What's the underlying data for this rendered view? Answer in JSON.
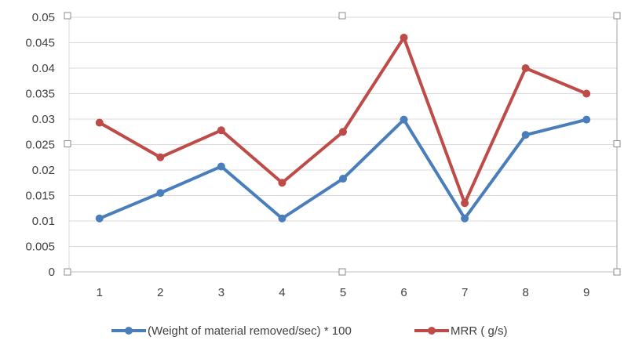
{
  "chart_data": {
    "type": "line",
    "categories": [
      "1",
      "2",
      "3",
      "4",
      "5",
      "6",
      "7",
      "8",
      "9"
    ],
    "series": [
      {
        "name": "(Weight of material removed/sec) * 100",
        "color": "#4a7ebb",
        "values": [
          0.0105,
          0.0155,
          0.0207,
          0.0105,
          0.0183,
          0.0299,
          0.0105,
          0.0269,
          0.0299
        ]
      },
      {
        "name": "MRR ( g/s)",
        "color": "#be4b48",
        "values": [
          0.0293,
          0.0225,
          0.0278,
          0.0175,
          0.0275,
          0.046,
          0.0135,
          0.04,
          0.035
        ]
      }
    ],
    "ylim": [
      0,
      0.05
    ],
    "yticks": [
      "0",
      "0.005",
      "0.01",
      "0.015",
      "0.02",
      "0.025",
      "0.03",
      "0.035",
      "0.04",
      "0.045",
      "0.05"
    ],
    "grid": true,
    "legend": "bottom"
  }
}
